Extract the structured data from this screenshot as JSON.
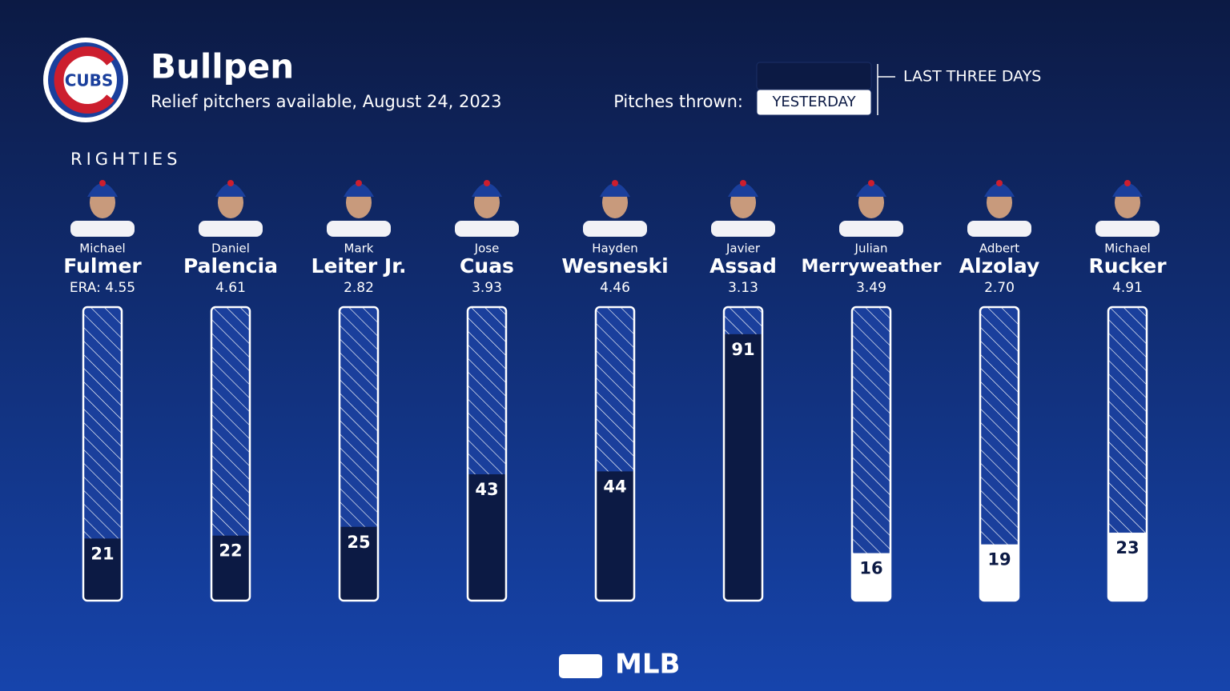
{
  "chart_data": {
    "type": "bar",
    "title": "Bullpen",
    "subtitle": "Relief pitchers available, August 24, 2023",
    "logo_text": "CUBS",
    "legend_title": "Pitches thrown:",
    "section": "RIGHTIES",
    "footer": "MLB",
    "first_names": [
      "Michael",
      "Daniel",
      "Mark",
      "Jose",
      "Hayden",
      "Javier",
      "Julian",
      "Adbert",
      "Michael"
    ],
    "categories": [
      "Fulmer",
      "Palencia",
      "Leiter Jr.",
      "Cuas",
      "Wesneski",
      "Assad",
      "Merryweather",
      "Alzolay",
      "Rucker"
    ],
    "era": [
      {
        "value": 4.55,
        "label": "ERA: 4.55"
      },
      4.61,
      2.82,
      3.93,
      4.46,
      3.13,
      3.49,
      2.7,
      4.91
    ],
    "series": [
      {
        "name": "LAST THREE DAYS",
        "color": "#0c1a44",
        "values": [
          21,
          22,
          25,
          43,
          44,
          91,
          null,
          null,
          null
        ]
      },
      {
        "name": "YESTERDAY",
        "color": "#ffffff",
        "values": [
          null,
          null,
          null,
          null,
          null,
          null,
          16,
          19,
          23
        ]
      }
    ],
    "ylim": [
      0,
      100
    ]
  }
}
